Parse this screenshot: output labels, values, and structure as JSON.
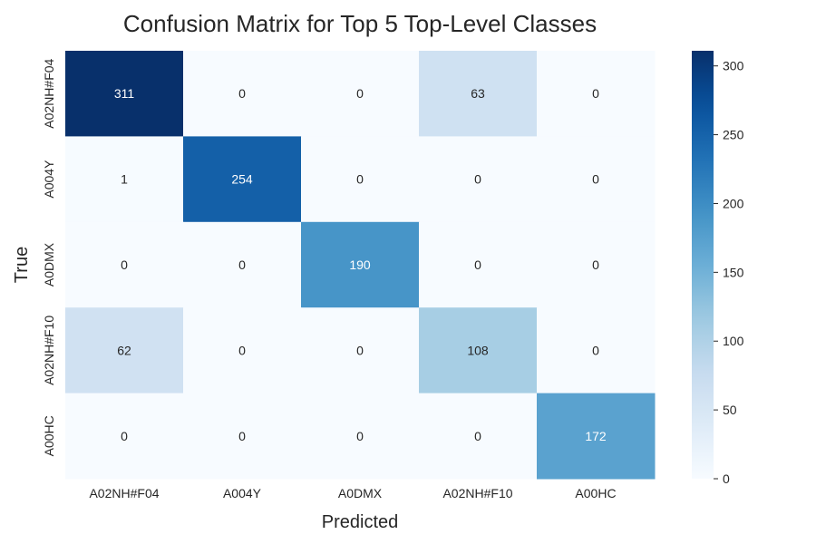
{
  "chart_data": {
    "type": "heatmap",
    "title": "Confusion Matrix for Top 5 Top-Level Classes",
    "xlabel": "Predicted",
    "ylabel": "True",
    "x_categories": [
      "A02NH#F04",
      "A004Y",
      "A0DMX",
      "A02NH#F10",
      "A00HC"
    ],
    "y_categories": [
      "A02NH#F04",
      "A004Y",
      "A0DMX",
      "A02NH#F10",
      "A00HC"
    ],
    "values": [
      [
        311,
        0,
        0,
        63,
        0
      ],
      [
        1,
        254,
        0,
        0,
        0
      ],
      [
        0,
        0,
        190,
        0,
        0
      ],
      [
        62,
        0,
        0,
        108,
        0
      ],
      [
        0,
        0,
        0,
        0,
        172
      ]
    ],
    "colorbar": {
      "min": 0,
      "max": 311,
      "ticks": [
        0,
        50,
        100,
        150,
        200,
        250,
        300
      ]
    },
    "colormap": "Blues",
    "colors": {
      "low": "#f7fbff",
      "high": "#08306b",
      "text_dark": "#262626",
      "text_light": "#ffffff"
    }
  }
}
